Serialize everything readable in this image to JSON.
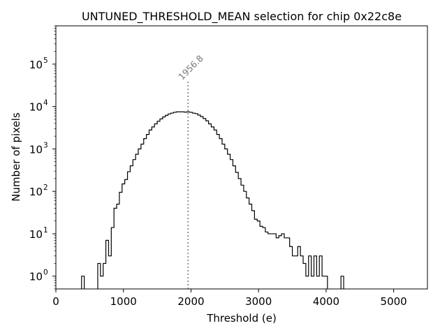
{
  "chart_data": {
    "type": "histogram",
    "title": "UNTUNED_THRESHOLD_MEAN selection for chip 0x22c8e",
    "xlabel": "Threshold (e)",
    "ylabel": "Number of pixels",
    "xlim": [
      0,
      5500
    ],
    "ylim": [
      0.5,
      800000
    ],
    "yscale": "log",
    "grid": false,
    "x_ticks": [
      0,
      1000,
      2000,
      3000,
      4000,
      5000
    ],
    "x_tick_labels": [
      "0",
      "1000",
      "2000",
      "3000",
      "4000",
      "5000"
    ],
    "y_ticks": [
      1,
      10,
      100,
      1000,
      10000,
      100000
    ],
    "y_tick_labels": [
      {
        "base": "10",
        "exp": "0"
      },
      {
        "base": "10",
        "exp": "1"
      },
      {
        "base": "10",
        "exp": "2"
      },
      {
        "base": "10",
        "exp": "3"
      },
      {
        "base": "10",
        "exp": "4"
      },
      {
        "base": "10",
        "exp": "5"
      }
    ],
    "mean": 1956.8,
    "mean_label": "1956.8",
    "mean_line_color": "#777777",
    "line_color": "#000000",
    "bin_width": 40,
    "bins": [
      {
        "x": 380,
        "y": 1
      },
      {
        "x": 620,
        "y": 2
      },
      {
        "x": 660,
        "y": 1
      },
      {
        "x": 700,
        "y": 2
      },
      {
        "x": 740,
        "y": 7
      },
      {
        "x": 780,
        "y": 3
      },
      {
        "x": 820,
        "y": 14
      },
      {
        "x": 860,
        "y": 40
      },
      {
        "x": 900,
        "y": 50
      },
      {
        "x": 940,
        "y": 95
      },
      {
        "x": 980,
        "y": 150
      },
      {
        "x": 1020,
        "y": 190
      },
      {
        "x": 1060,
        "y": 290
      },
      {
        "x": 1100,
        "y": 400
      },
      {
        "x": 1140,
        "y": 560
      },
      {
        "x": 1180,
        "y": 750
      },
      {
        "x": 1220,
        "y": 1000
      },
      {
        "x": 1260,
        "y": 1300
      },
      {
        "x": 1300,
        "y": 1750
      },
      {
        "x": 1340,
        "y": 2200
      },
      {
        "x": 1380,
        "y": 2800
      },
      {
        "x": 1420,
        "y": 3300
      },
      {
        "x": 1460,
        "y": 3900
      },
      {
        "x": 1500,
        "y": 4500
      },
      {
        "x": 1540,
        "y": 5100
      },
      {
        "x": 1580,
        "y": 5700
      },
      {
        "x": 1620,
        "y": 6200
      },
      {
        "x": 1660,
        "y": 6700
      },
      {
        "x": 1700,
        "y": 7000
      },
      {
        "x": 1740,
        "y": 7300
      },
      {
        "x": 1780,
        "y": 7500
      },
      {
        "x": 1820,
        "y": 7500
      },
      {
        "x": 1860,
        "y": 7500
      },
      {
        "x": 1900,
        "y": 7400
      },
      {
        "x": 1940,
        "y": 7500
      },
      {
        "x": 1980,
        "y": 7300
      },
      {
        "x": 2020,
        "y": 7000
      },
      {
        "x": 2060,
        "y": 6800
      },
      {
        "x": 2100,
        "y": 6300
      },
      {
        "x": 2140,
        "y": 5800
      },
      {
        "x": 2180,
        "y": 5200
      },
      {
        "x": 2220,
        "y": 4600
      },
      {
        "x": 2260,
        "y": 3900
      },
      {
        "x": 2300,
        "y": 3300
      },
      {
        "x": 2340,
        "y": 2800
      },
      {
        "x": 2380,
        "y": 2200
      },
      {
        "x": 2420,
        "y": 1750
      },
      {
        "x": 2460,
        "y": 1300
      },
      {
        "x": 2500,
        "y": 1000
      },
      {
        "x": 2540,
        "y": 750
      },
      {
        "x": 2580,
        "y": 560
      },
      {
        "x": 2620,
        "y": 400
      },
      {
        "x": 2660,
        "y": 280
      },
      {
        "x": 2700,
        "y": 200
      },
      {
        "x": 2740,
        "y": 140
      },
      {
        "x": 2780,
        "y": 100
      },
      {
        "x": 2820,
        "y": 70
      },
      {
        "x": 2860,
        "y": 50
      },
      {
        "x": 2900,
        "y": 35
      },
      {
        "x": 2940,
        "y": 22
      },
      {
        "x": 2980,
        "y": 20
      },
      {
        "x": 3020,
        "y": 15
      },
      {
        "x": 3060,
        "y": 14
      },
      {
        "x": 3100,
        "y": 11
      },
      {
        "x": 3140,
        "y": 10
      },
      {
        "x": 3180,
        "y": 10
      },
      {
        "x": 3220,
        "y": 10
      },
      {
        "x": 3260,
        "y": 8
      },
      {
        "x": 3300,
        "y": 9
      },
      {
        "x": 3340,
        "y": 10
      },
      {
        "x": 3380,
        "y": 8
      },
      {
        "x": 3420,
        "y": 8
      },
      {
        "x": 3460,
        "y": 5
      },
      {
        "x": 3500,
        "y": 3
      },
      {
        "x": 3540,
        "y": 3
      },
      {
        "x": 3580,
        "y": 5
      },
      {
        "x": 3620,
        "y": 3
      },
      {
        "x": 3660,
        "y": 2
      },
      {
        "x": 3700,
        "y": 1
      },
      {
        "x": 3740,
        "y": 3
      },
      {
        "x": 3780,
        "y": 1
      },
      {
        "x": 3820,
        "y": 3
      },
      {
        "x": 3860,
        "y": 1
      },
      {
        "x": 3900,
        "y": 3
      },
      {
        "x": 3940,
        "y": 1
      },
      {
        "x": 3980,
        "y": 1
      },
      {
        "x": 4220,
        "y": 1
      }
    ]
  }
}
